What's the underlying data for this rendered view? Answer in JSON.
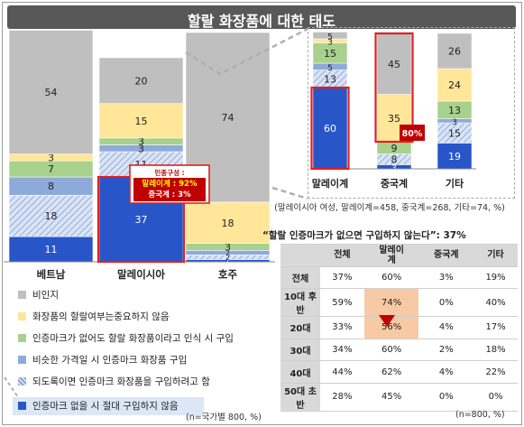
{
  "title": "할랄 화장품에 대한 태도",
  "colors": {
    "title_bar": "#585858",
    "highlight_border": "#e02020",
    "highlight_fill": "#f7c9a5",
    "table_header": "#d9d9d9",
    "legend_highlight": "#dbe7f7"
  },
  "chart_data": [
    {
      "type": "bar",
      "stacked": true,
      "percent": true,
      "categories": [
        "베트남",
        "말레이시아",
        "호주"
      ],
      "series": [
        {
          "name": "인증마크 없을 시 절대 구입하지 않음",
          "color": "#2855c8",
          "pattern": "solid",
          "values": [
            11,
            37,
            1
          ]
        },
        {
          "name": "되도록이면 인증마크 화장품을 구입하려고 함",
          "color": "#c7d5ef",
          "pattern": "hatch",
          "values": [
            18,
            11,
            2
          ]
        },
        {
          "name": "비슷한 가격일 시 인증마크 화장품 구입",
          "color": "#8eaadb",
          "pattern": "solid",
          "values": [
            8,
            3,
            2
          ]
        },
        {
          "name": "인증마크가 없어도 할랄 화장품이라고 인식 시 구입",
          "color": "#a9d18e",
          "pattern": "solid",
          "values": [
            7,
            3,
            3
          ]
        },
        {
          "name": "화장품의 할랄여부는중요하지 않음",
          "color": "#ffe699",
          "pattern": "solid",
          "values": [
            3,
            15,
            18
          ]
        },
        {
          "name": "비인지",
          "color": "#bfbfbf",
          "pattern": "solid",
          "values": [
            54,
            20,
            74
          ]
        }
      ],
      "ylim": [
        0,
        100
      ],
      "annotation": {
        "category": "말레이시아",
        "heading": "인종구성 :",
        "lines": [
          "말레이계 : 92%",
          "중국계 : 3%"
        ]
      },
      "note": "(n=국가별 800, %)"
    },
    {
      "type": "bar",
      "stacked": true,
      "percent": true,
      "categories": [
        "말레이계",
        "중국계",
        "기타"
      ],
      "series": [
        {
          "name": "인증마크 없을 시 절대 구입하지 않음",
          "values": [
            60,
            3,
            19
          ]
        },
        {
          "name": "되도록이면 인증마크 화장품을 구입하려고 함",
          "values": [
            13,
            8,
            15
          ]
        },
        {
          "name": "비슷한 가격일 시 인증마크 화장품 구입",
          "values": [
            5,
            0,
            3
          ]
        },
        {
          "name": "인증마크가 없어도 할랄 화장품이라고 인식 시 구입",
          "values": [
            15,
            9,
            13
          ]
        },
        {
          "name": "화장품의 할랄여부는중요하지 않음",
          "values": [
            3,
            35,
            24
          ]
        },
        {
          "name": "비인지",
          "values": [
            5,
            45,
            26
          ]
        }
      ],
      "ylim": [
        0,
        100
      ],
      "callout": {
        "category": "중국계",
        "text": "80%"
      },
      "note": "(말레이시아 여성, 말레이계=458, 중국계=268, 기타=74, %)"
    },
    {
      "type": "table",
      "title": "“할랄 인증마크가 없으면 구입하지 않는다”: 37%",
      "columns": [
        "",
        "전체",
        "말레이\n계",
        "중국계",
        "기타"
      ],
      "rows": [
        {
          "label": "전체",
          "values": [
            "37%",
            "60%",
            "3%",
            "19%"
          ]
        },
        {
          "label": "10대 후반",
          "values": [
            "59%",
            "74%",
            "0%",
            "40%"
          ]
        },
        {
          "label": "20대",
          "values": [
            "33%",
            "56%",
            "4%",
            "17%"
          ]
        },
        {
          "label": "30대",
          "values": [
            "34%",
            "60%",
            "2%",
            "18%"
          ]
        },
        {
          "label": "40대",
          "values": [
            "44%",
            "62%",
            "4%",
            "22%"
          ]
        },
        {
          "label": "50대 초반",
          "values": [
            "28%",
            "45%",
            "0%",
            "0%"
          ]
        }
      ],
      "highlight": [
        {
          "row": 1,
          "col": 1
        },
        {
          "row": 2,
          "col": 1
        }
      ],
      "note": "(n=800, %)"
    }
  ]
}
